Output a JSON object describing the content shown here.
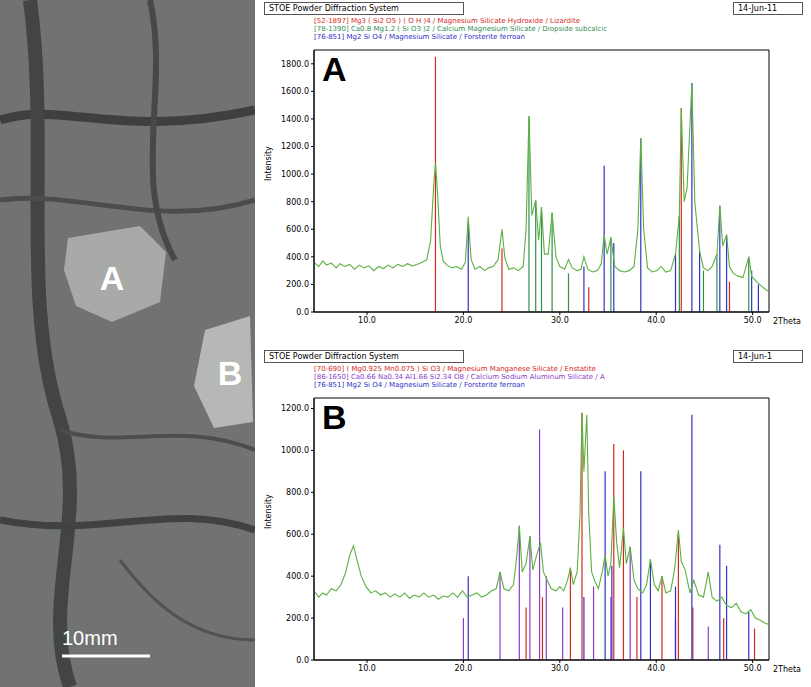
{
  "photo": {
    "labels": [
      "A",
      "B"
    ],
    "scale_bar": "10mm"
  },
  "chart_data": [
    {
      "type": "line",
      "panel": "A",
      "title": "STOE Powder Diffraction System",
      "date": "14-Jun-11",
      "x_label": "2Theta",
      "y_label": "Intensity",
      "legend": "top left",
      "xlim": [
        4.5,
        51.7
      ],
      "ylim": [
        0,
        1900
      ],
      "xticks": [
        {
          "value": 10,
          "label": "10.0"
        },
        {
          "value": 20,
          "label": "20.0"
        },
        {
          "value": 30,
          "label": "30.0"
        },
        {
          "value": 40,
          "label": "40.0"
        },
        {
          "value": 50,
          "label": "50.0"
        }
      ],
      "yticks": [
        {
          "value": 0,
          "label": "0.0"
        },
        {
          "value": 200,
          "label": "200.0"
        },
        {
          "value": 400,
          "label": "400.0"
        },
        {
          "value": 600,
          "label": "600.0"
        },
        {
          "value": 800,
          "label": "800.0"
        },
        {
          "value": 1000,
          "label": "1000.0"
        },
        {
          "value": 1200,
          "label": "1200.0"
        },
        {
          "value": 1400,
          "label": "1400.0"
        },
        {
          "value": 1600,
          "label": "1600.0"
        },
        {
          "value": 1800,
          "label": "1800.0"
        }
      ],
      "color": "#5cb040",
      "x": [
        4.5,
        5.0,
        5.4,
        5.8,
        6.3,
        6.8,
        7.2,
        7.7,
        8.2,
        8.7,
        9.2,
        9.7,
        10.2,
        10.7,
        11.2,
        11.7,
        12.2,
        12.7,
        13.2,
        13.7,
        14.2,
        14.7,
        15.2,
        15.7,
        16.2,
        16.6,
        16.9,
        17.1,
        17.3,
        17.6,
        17.9,
        18.3,
        18.8,
        19.3,
        19.8,
        20.2,
        20.5,
        20.8,
        21.2,
        21.7,
        22.2,
        22.6,
        23.1,
        23.6,
        24.0,
        24.3,
        24.7,
        25.2,
        25.7,
        26.2,
        26.5,
        26.8,
        27.1,
        27.5,
        27.8,
        28.1,
        28.4,
        28.8,
        29.2,
        29.6,
        30.0,
        30.5,
        30.9,
        31.3,
        31.8,
        32.2,
        32.5,
        32.9,
        33.4,
        33.9,
        34.3,
        34.6,
        34.9,
        35.3,
        35.7,
        36.2,
        36.7,
        37.2,
        37.7,
        38.1,
        38.4,
        38.7,
        39.1,
        39.6,
        40.1,
        40.5,
        41.0,
        41.5,
        42.0,
        42.4,
        42.6,
        42.9,
        43.2,
        43.7,
        44.0,
        44.5,
        44.9,
        45.4,
        45.8,
        46.3,
        46.6,
        46.9,
        47.3,
        47.6,
        48.0,
        48.5,
        49.0,
        49.6,
        49.9,
        50.4,
        50.9,
        51.4,
        51.7
      ],
      "values": [
        360,
        330,
        370,
        340,
        355,
        320,
        350,
        330,
        345,
        310,
        340,
        320,
        335,
        300,
        330,
        315,
        340,
        320,
        345,
        330,
        350,
        335,
        345,
        360,
        380,
        520,
        900,
        1080,
        880,
        480,
        370,
        340,
        320,
        330,
        310,
        360,
        690,
        380,
        310,
        330,
        300,
        320,
        330,
        380,
        600,
        390,
        310,
        320,
        300,
        330,
        600,
        1420,
        700,
        810,
        520,
        760,
        420,
        420,
        720,
        400,
        330,
        310,
        380,
        320,
        300,
        310,
        400,
        310,
        290,
        300,
        350,
        560,
        420,
        540,
        330,
        300,
        290,
        300,
        330,
        600,
        1260,
        600,
        320,
        290,
        300,
        330,
        290,
        300,
        420,
        700,
        1480,
        800,
        900,
        1660,
        800,
        440,
        320,
        300,
        330,
        420,
        770,
        480,
        560,
        330,
        280,
        260,
        250,
        400,
        260,
        220,
        190,
        160,
        150
      ],
      "series": [
        {
          "name": "[52-1897] Mg3 ( Si2 O5 ) ( O H )4 / Magnesium Silicate Hydroxide / Lizardite",
          "color": "#d42a1e",
          "type": "bar",
          "x": [
            17.1,
            24.0,
            33.0,
            42.6,
            47.6
          ],
          "values": [
            1850,
            460,
            180,
            1480,
            220
          ]
        },
        {
          "name": "[78-1390] Ca0.8 Mg1.2 ( Si O3 )2 / Calcium Magnesium Silicate / Diopside subcalcic",
          "color": "#2f8f4f",
          "type": "bar",
          "x": [
            26.8,
            27.5,
            28.1,
            29.2,
            30.9,
            35.3,
            42.4,
            44.9,
            46.3,
            49.6
          ],
          "values": [
            1420,
            810,
            760,
            720,
            280,
            540,
            700,
            300,
            420,
            400
          ]
        },
        {
          "name": "[76-851] Mg2 Si O4 / Magnesium Silicate / Forsterite ferroan",
          "color": "#3030c8",
          "type": "bar",
          "x": [
            20.5,
            32.5,
            34.6,
            35.6,
            38.4,
            42.0,
            43.7,
            44.5,
            46.6,
            47.3,
            49.9,
            50.6
          ],
          "values": [
            650,
            330,
            1060,
            500,
            1260,
            420,
            1660,
            450,
            770,
            560,
            300,
            200
          ]
        }
      ]
    },
    {
      "type": "line",
      "panel": "B",
      "title": "STOE Powder Diffraction System",
      "date": "14-Jun-1",
      "x_label": "2Theta",
      "y_label": "Intensity",
      "legend": "top left",
      "xlim": [
        4.5,
        51.7
      ],
      "ylim": [
        0,
        1250
      ],
      "xticks": [
        {
          "value": 10,
          "label": "10.0"
        },
        {
          "value": 20,
          "label": "20.0"
        },
        {
          "value": 30,
          "label": "30.0"
        },
        {
          "value": 40,
          "label": "40.0"
        },
        {
          "value": 50,
          "label": "50.0"
        }
      ],
      "yticks": [
        {
          "value": 0,
          "label": "0.0"
        },
        {
          "value": 200,
          "label": "200.0"
        },
        {
          "value": 400,
          "label": "400.0"
        },
        {
          "value": 600,
          "label": "600.0"
        },
        {
          "value": 800,
          "label": "800.0"
        },
        {
          "value": 1000,
          "label": "1000.0"
        },
        {
          "value": 1200,
          "label": "1200.0"
        }
      ],
      "color": "#5cb040",
      "x": [
        4.5,
        5.0,
        5.4,
        5.8,
        6.3,
        6.8,
        7.3,
        7.8,
        8.2,
        8.6,
        9.0,
        9.4,
        9.9,
        10.4,
        10.9,
        11.4,
        11.9,
        12.4,
        12.9,
        13.4,
        13.9,
        14.4,
        14.9,
        15.4,
        15.9,
        16.4,
        16.9,
        17.4,
        17.9,
        18.4,
        18.9,
        19.4,
        19.9,
        20.4,
        20.9,
        21.4,
        21.9,
        22.4,
        22.9,
        23.4,
        23.8,
        24.2,
        24.7,
        25.2,
        25.5,
        25.8,
        26.1,
        26.5,
        26.9,
        27.2,
        27.6,
        28.0,
        28.3,
        28.7,
        29.1,
        29.6,
        30.0,
        30.4,
        30.8,
        31.1,
        31.4,
        31.8,
        32.1,
        32.3,
        32.5,
        32.8,
        33.0,
        33.3,
        33.6,
        34.0,
        34.4,
        34.7,
        35.0,
        35.3,
        35.6,
        35.9,
        36.2,
        36.6,
        36.9,
        37.3,
        37.7,
        38.1,
        38.6,
        39.0,
        39.4,
        39.8,
        40.2,
        40.6,
        41.0,
        41.5,
        41.9,
        42.3,
        42.6,
        43.0,
        43.5,
        43.9,
        44.4,
        44.9,
        45.4,
        45.8,
        46.3,
        46.8,
        47.3,
        47.8,
        48.3,
        48.8,
        49.3,
        49.8,
        50.3,
        50.8,
        51.3,
        51.7
      ],
      "values": [
        330,
        300,
        320,
        310,
        340,
        330,
        360,
        420,
        500,
        545,
        470,
        400,
        350,
        320,
        330,
        310,
        320,
        300,
        315,
        300,
        320,
        295,
        310,
        300,
        320,
        300,
        310,
        290,
        305,
        300,
        320,
        300,
        330,
        300,
        310,
        320,
        300,
        310,
        330,
        340,
        420,
        340,
        330,
        360,
        480,
        640,
        420,
        460,
        590,
        430,
        500,
        560,
        420,
        380,
        340,
        330,
        350,
        330,
        380,
        440,
        360,
        420,
        700,
        1180,
        900,
        1170,
        700,
        420,
        380,
        340,
        420,
        500,
        400,
        460,
        780,
        560,
        440,
        630,
        460,
        540,
        380,
        340,
        320,
        360,
        480,
        360,
        330,
        400,
        320,
        330,
        430,
        620,
        470,
        430,
        320,
        380,
        310,
        300,
        420,
        300,
        280,
        300,
        260,
        250,
        270,
        230,
        220,
        240,
        200,
        190,
        175,
        170
      ],
      "series": [
        {
          "name": "[70-690] ( Mg0.925 Mn0.075 ) Si O3 / Magnesium Manganese Silicate / Enstatite",
          "color": "#d42a1e",
          "type": "bar",
          "x": [
            26.5,
            28.2,
            31.1,
            32.3,
            35.6,
            36.6,
            38.0,
            40.6,
            42.3,
            43.8,
            47.0,
            50.2
          ],
          "values": [
            250,
            300,
            440,
            1180,
            1030,
            1000,
            300,
            400,
            600,
            250,
            200,
            150
          ]
        },
        {
          "name": "[86-1650] Ca0.66 Na0.34 Al1.66 Si2.34 O8 / Calcium Sodium Aluminum Silicate / A",
          "color": "#8a3cc8",
          "type": "bar",
          "x": [
            20.0,
            23.8,
            25.8,
            26.9,
            27.9,
            28.6,
            30.3,
            33.5,
            35.3,
            37.3,
            42.0,
            45.4
          ],
          "values": [
            200,
            420,
            640,
            590,
            1100,
            400,
            250,
            350,
            300,
            540,
            200,
            160
          ]
        },
        {
          "name": "[76-851] Mg2 Si O4 / Magnesium Silicate / Forsterite ferroan",
          "color": "#3030c8",
          "type": "bar",
          "x": [
            20.5,
            32.5,
            34.7,
            35.4,
            38.4,
            39.4,
            42.0,
            43.7,
            46.6,
            47.3,
            49.6
          ],
          "values": [
            400,
            300,
            900,
            450,
            900,
            480,
            350,
            1170,
            550,
            450,
            230
          ]
        }
      ]
    }
  ]
}
